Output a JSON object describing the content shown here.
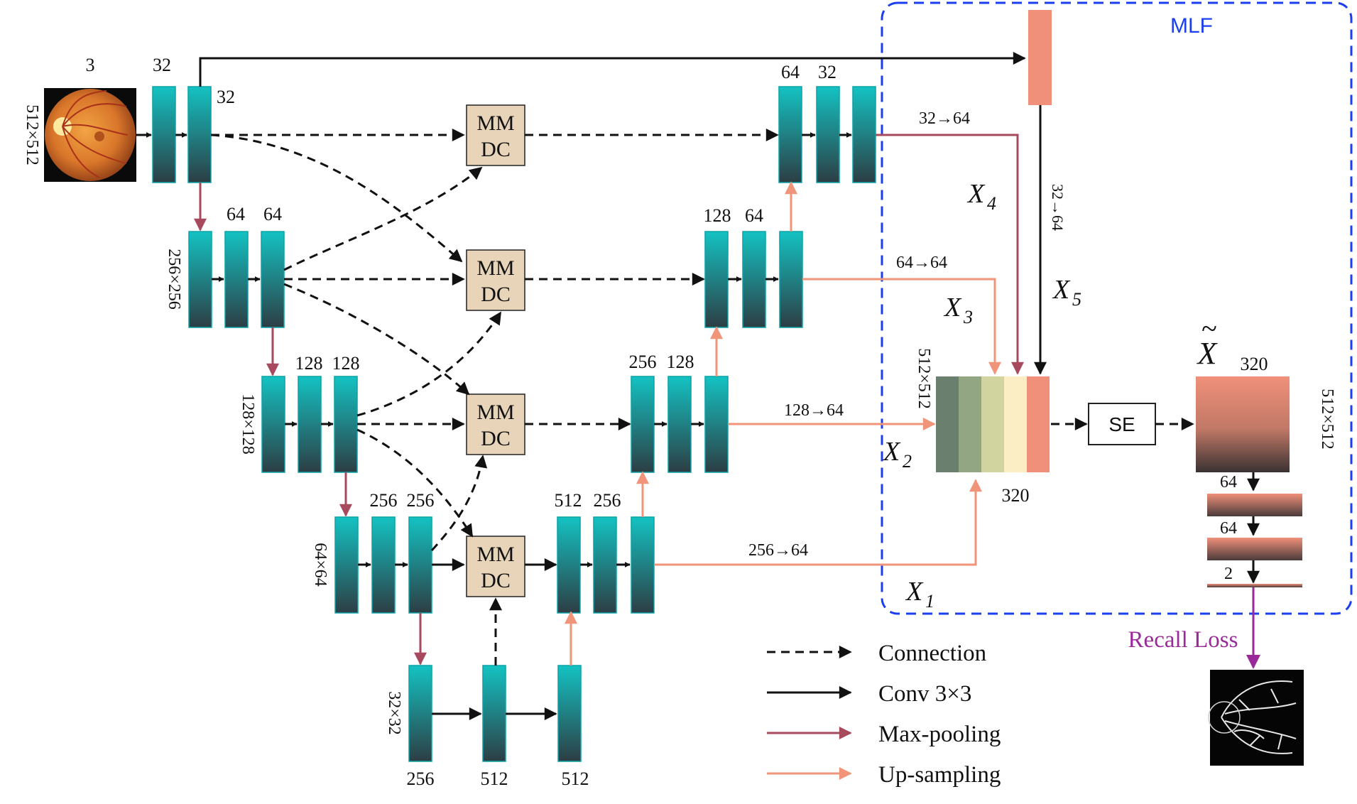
{
  "diagram": {
    "mlf_title": "MLF",
    "input_channels": "3",
    "input_size": "512×512",
    "enc1": {
      "c1": "32",
      "c2": "32"
    },
    "enc2": {
      "size": "256×256",
      "c1": "64",
      "c2": "64"
    },
    "enc3": {
      "size": "128×128",
      "c1": "128",
      "c2": "128"
    },
    "enc4": {
      "size": "64×64",
      "c1": "256",
      "c2": "256"
    },
    "bottom": {
      "size": "32×32",
      "c1": "256",
      "c2": "512",
      "c3": "512"
    },
    "dec4": {
      "c1": "512",
      "c2": "256"
    },
    "dec3": {
      "c1": "256",
      "c2": "128"
    },
    "dec2": {
      "c1": "128",
      "c2": "64"
    },
    "dec1": {
      "c1": "64",
      "c2": "32"
    },
    "mmdc_line1": "MM",
    "mmdc_line2": "DC",
    "proj_x4": "32→64",
    "proj_x3": "64→64",
    "proj_x2": "128→64",
    "proj_x1": "256→64",
    "proj_x5": "32→64",
    "x_labels": {
      "x1": "X",
      "x1_sub": "1",
      "x2": "X",
      "x2_sub": "2",
      "x3": "X",
      "x3_sub": "3",
      "x4": "X",
      "x4_sub": "4",
      "x5": "X",
      "x5_sub": "5"
    },
    "concat_size": "512×512",
    "concat_channels": "320",
    "se_label": "SE",
    "xtilde": "X",
    "xtilde_accent": "~",
    "out_channels": "320",
    "out_size": "512×512",
    "head_c1": "64",
    "head_c2": "64",
    "head_c3": "2",
    "recall_loss": "Recall Loss",
    "legend": {
      "connection": "Connection",
      "conv": "Conv 3×3",
      "maxpool": "Max-pooling",
      "upsample": "Up-sampling"
    }
  },
  "colors": {
    "block_top": "#14c2c2",
    "block_bottom": "#2c3e44",
    "block_border": "#0aa3a8",
    "mmdc_fill": "#e8d4b8",
    "maxpool_arrow": "#a84a5e",
    "upsample_arrow": "#f0957a",
    "recall": "#9a2a9a",
    "mlf_border": "#1a3ef0",
    "mlf_label": "#1a3ef0",
    "salmon": "#f0907a",
    "concat_stripes": [
      "#6b7f6e",
      "#93a684",
      "#d2d4a0",
      "#fbeec4",
      "#f0907a"
    ]
  }
}
